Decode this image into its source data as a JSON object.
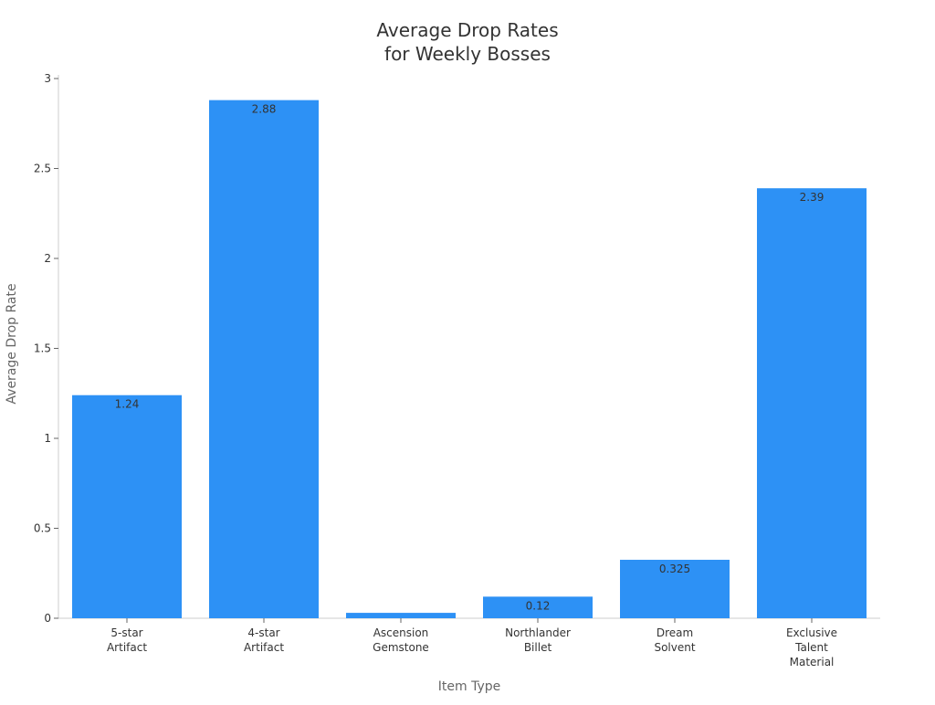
{
  "chart_data": {
    "type": "bar",
    "title": [
      "Average Drop Rates",
      "for Weekly Bosses"
    ],
    "xlabel": "Item Type",
    "ylabel": "Average Drop Rate",
    "categories": [
      [
        "5-star",
        "Artifact"
      ],
      [
        "4-star",
        "Artifact"
      ],
      [
        "Ascension",
        "Gemstone"
      ],
      [
        "Northlander",
        "Billet"
      ],
      [
        "Dream",
        "Solvent"
      ],
      [
        "Exclusive",
        "Talent",
        "Material"
      ]
    ],
    "values": [
      1.24,
      2.88,
      0.03,
      0.12,
      0.325,
      2.39
    ],
    "data_labels": [
      "1.24",
      "2.88",
      "",
      "0.12",
      "0.325",
      "2.39"
    ],
    "ylim": [
      0,
      3
    ],
    "yticks": [
      0,
      0.5,
      1,
      1.5,
      2,
      2.5,
      3
    ],
    "ytick_labels": [
      "0",
      "0.5",
      "1",
      "1.5",
      "2",
      "2.5",
      "3"
    ],
    "grid": false,
    "legend": "none",
    "bar_color": "#2d91f5"
  }
}
